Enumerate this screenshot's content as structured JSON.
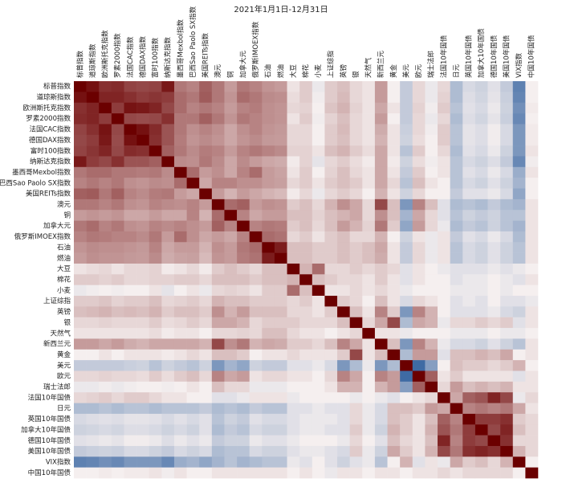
{
  "chart_data": {
    "type": "heatmap",
    "title": "2021年1月1日-12月31日",
    "categories": [
      "标普指数",
      "道琼斯指数",
      "欧洲斯托克指数",
      "罗素2000指数",
      "法国CAC指数",
      "德国DAX指数",
      "富时100指数",
      "纳斯达克指数",
      "墨西哥Mexbol指数",
      "巴西Sao Paolo SX指数",
      "美国REITs指数",
      "澳元",
      "铜",
      "加拿大元",
      "俄罗斯IMOEX指数",
      "石油",
      "燃油",
      "大豆",
      "棉花",
      "小麦",
      "上证综指",
      "英镑",
      "银",
      "天然气",
      "新西兰元",
      "黄金",
      "美元",
      "欧元",
      "瑞士法郎",
      "法国10年国债",
      "日元",
      "英国10年国债",
      "加拿大10年国债",
      "德国10年国债",
      "美国10年国债",
      "VIX指数",
      "中国10年国债"
    ],
    "values": [
      [
        1
      ],
      [
        0.93,
        1
      ],
      [
        0.8,
        0.85,
        1
      ],
      [
        0.82,
        0.85,
        0.75,
        1
      ],
      [
        0.72,
        0.8,
        0.92,
        0.7,
        1
      ],
      [
        0.7,
        0.75,
        0.9,
        0.68,
        0.93,
        1
      ],
      [
        0.72,
        0.78,
        0.85,
        0.7,
        0.82,
        0.8,
        1
      ],
      [
        0.9,
        0.75,
        0.7,
        0.8,
        0.65,
        0.65,
        0.6,
        1
      ],
      [
        0.5,
        0.55,
        0.55,
        0.5,
        0.5,
        0.48,
        0.5,
        0.42,
        1
      ],
      [
        0.45,
        0.5,
        0.45,
        0.5,
        0.4,
        0.38,
        0.42,
        0.4,
        0.55,
        1
      ],
      [
        0.6,
        0.62,
        0.5,
        0.6,
        0.45,
        0.42,
        0.48,
        0.5,
        0.35,
        0.3,
        1
      ],
      [
        0.5,
        0.5,
        0.45,
        0.5,
        0.4,
        0.38,
        0.45,
        0.42,
        0.4,
        0.45,
        0.35,
        1
      ],
      [
        0.35,
        0.38,
        0.35,
        0.38,
        0.3,
        0.3,
        0.35,
        0.3,
        0.3,
        0.45,
        0.25,
        0.55,
        1
      ],
      [
        0.5,
        0.55,
        0.45,
        0.5,
        0.4,
        0.38,
        0.45,
        0.42,
        0.45,
        0.4,
        0.35,
        0.6,
        0.45,
        1
      ],
      [
        0.45,
        0.5,
        0.48,
        0.45,
        0.45,
        0.42,
        0.5,
        0.35,
        0.55,
        0.4,
        0.3,
        0.35,
        0.3,
        0.45,
        1
      ],
      [
        0.38,
        0.42,
        0.4,
        0.4,
        0.38,
        0.36,
        0.45,
        0.3,
        0.35,
        0.35,
        0.25,
        0.4,
        0.35,
        0.5,
        0.55,
        1
      ],
      [
        0.35,
        0.4,
        0.38,
        0.38,
        0.36,
        0.35,
        0.42,
        0.28,
        0.32,
        0.33,
        0.22,
        0.38,
        0.35,
        0.48,
        0.52,
        0.88,
        1
      ],
      [
        0.05,
        0.08,
        0.1,
        0.05,
        0.1,
        0.1,
        0.12,
        0.02,
        0.05,
        0.1,
        0.02,
        0.15,
        0.2,
        0.15,
        0.1,
        0.2,
        0.2,
        1
      ],
      [
        0.15,
        0.15,
        0.12,
        0.15,
        0.1,
        0.1,
        0.12,
        0.12,
        0.15,
        0.15,
        0.1,
        0.2,
        0.2,
        0.2,
        0.15,
        0.2,
        0.2,
        0.25,
        1
      ],
      [
        -0.05,
        -0.02,
        0.0,
        -0.02,
        0.0,
        0.0,
        0.05,
        -0.08,
        0.0,
        0.05,
        -0.05,
        0.1,
        0.12,
        0.1,
        0.05,
        0.15,
        0.15,
        0.55,
        0.2,
        1
      ],
      [
        0.15,
        0.15,
        0.18,
        0.12,
        0.15,
        0.15,
        0.2,
        0.1,
        0.12,
        0.15,
        0.1,
        0.25,
        0.2,
        0.2,
        0.15,
        0.15,
        0.15,
        0.1,
        0.15,
        0.05,
        1
      ],
      [
        0.2,
        0.22,
        0.25,
        0.2,
        0.22,
        0.2,
        0.25,
        0.15,
        0.2,
        0.2,
        0.15,
        0.4,
        0.25,
        0.35,
        0.2,
        0.2,
        0.2,
        0.1,
        0.1,
        0.05,
        0.15,
        1
      ],
      [
        0.1,
        0.1,
        0.12,
        0.1,
        0.1,
        0.1,
        0.15,
        0.08,
        0.1,
        0.15,
        0.1,
        0.3,
        0.3,
        0.25,
        0.1,
        0.15,
        0.15,
        0.15,
        0.1,
        0.1,
        0.1,
        0.2,
        1
      ],
      [
        0.05,
        0.05,
        0.05,
        0.05,
        0.05,
        0.05,
        0.08,
        0.02,
        0.05,
        0.05,
        0.0,
        0.1,
        0.1,
        0.12,
        0.1,
        0.2,
        0.2,
        0.1,
        0.05,
        0.05,
        0.0,
        0.05,
        0.1,
        1
      ],
      [
        0.35,
        0.35,
        0.3,
        0.35,
        0.28,
        0.25,
        0.3,
        0.3,
        0.3,
        0.3,
        0.25,
        0.7,
        0.4,
        0.5,
        0.25,
        0.3,
        0.28,
        0.15,
        0.15,
        0.1,
        0.2,
        0.45,
        0.3,
        0.05,
        1
      ],
      [
        0.0,
        0.0,
        0.05,
        0.0,
        0.05,
        0.05,
        0.05,
        0.02,
        0.05,
        0.1,
        0.05,
        0.2,
        0.2,
        0.15,
        0.0,
        0.05,
        0.05,
        0.1,
        0.05,
        0.05,
        0.05,
        0.15,
        0.7,
        0.05,
        0.2,
        1
      ],
      [
        -0.25,
        -0.25,
        -0.25,
        -0.25,
        -0.22,
        -0.2,
        -0.3,
        -0.2,
        -0.25,
        -0.3,
        -0.2,
        -0.6,
        -0.4,
        -0.5,
        -0.2,
        -0.25,
        -0.25,
        -0.1,
        -0.1,
        -0.05,
        -0.15,
        -0.6,
        -0.35,
        -0.05,
        -0.6,
        -0.35,
        1
      ],
      [
        0.1,
        0.1,
        0.12,
        0.1,
        0.1,
        0.08,
        0.15,
        0.08,
        0.15,
        0.2,
        0.1,
        0.45,
        0.3,
        0.35,
        0.05,
        0.1,
        0.1,
        0.05,
        0.05,
        0.0,
        0.1,
        0.45,
        0.3,
        0.0,
        0.45,
        0.35,
        -0.9,
        1
      ],
      [
        -0.05,
        -0.05,
        -0.02,
        -0.05,
        -0.02,
        0.0,
        0.0,
        -0.02,
        0.0,
        0.05,
        0.0,
        0.2,
        0.1,
        0.1,
        -0.05,
        -0.05,
        -0.05,
        0.0,
        0.0,
        0.0,
        0.05,
        0.25,
        0.25,
        0.0,
        0.25,
        0.35,
        -0.55,
        0.6,
        1
      ],
      [
        0.1,
        0.12,
        0.15,
        0.1,
        0.15,
        0.15,
        0.1,
        0.05,
        0.05,
        0.0,
        0.0,
        -0.1,
        -0.1,
        -0.05,
        0.05,
        0.05,
        0.05,
        -0.05,
        0.0,
        0.0,
        0.0,
        0.0,
        -0.05,
        0.0,
        -0.05,
        -0.1,
        0.0,
        0.05,
        0.1,
        1
      ],
      [
        -0.35,
        -0.35,
        -0.3,
        -0.35,
        -0.3,
        -0.3,
        -0.35,
        -0.3,
        -0.3,
        -0.3,
        -0.25,
        -0.35,
        -0.3,
        -0.35,
        -0.25,
        -0.3,
        -0.3,
        -0.1,
        -0.1,
        -0.05,
        -0.1,
        -0.1,
        0.1,
        -0.05,
        -0.15,
        0.2,
        0.2,
        0.15,
        0.35,
        0.3,
        1
      ],
      [
        -0.15,
        -0.12,
        -0.1,
        -0.12,
        -0.08,
        -0.08,
        -0.1,
        -0.15,
        -0.1,
        -0.15,
        -0.1,
        -0.3,
        -0.2,
        -0.25,
        -0.1,
        -0.15,
        -0.15,
        -0.1,
        -0.05,
        -0.05,
        -0.05,
        -0.1,
        0.1,
        -0.05,
        -0.15,
        0.2,
        0.15,
        0.05,
        0.2,
        0.6,
        0.45,
        1
      ],
      [
        -0.2,
        -0.18,
        -0.15,
        -0.18,
        -0.12,
        -0.12,
        -0.15,
        -0.2,
        -0.15,
        -0.2,
        -0.1,
        -0.35,
        -0.25,
        -0.3,
        -0.15,
        -0.2,
        -0.2,
        -0.1,
        -0.05,
        -0.05,
        -0.1,
        -0.1,
        0.15,
        -0.05,
        -0.2,
        0.25,
        0.15,
        0.05,
        0.25,
        0.65,
        0.5,
        0.75,
        1
      ],
      [
        -0.1,
        -0.08,
        -0.05,
        -0.08,
        -0.02,
        -0.02,
        -0.05,
        -0.12,
        -0.05,
        -0.1,
        -0.05,
        -0.25,
        -0.2,
        -0.2,
        -0.05,
        -0.1,
        -0.1,
        -0.05,
        0.0,
        0.0,
        0.0,
        -0.05,
        0.1,
        0.0,
        -0.1,
        0.2,
        0.1,
        0.05,
        0.2,
        0.85,
        0.45,
        0.75,
        0.7,
        1
      ],
      [
        -0.25,
        -0.22,
        -0.2,
        -0.22,
        -0.15,
        -0.15,
        -0.2,
        -0.25,
        -0.15,
        -0.2,
        -0.15,
        -0.35,
        -0.3,
        -0.3,
        -0.15,
        -0.2,
        -0.2,
        -0.1,
        -0.05,
        -0.05,
        -0.1,
        -0.15,
        0.15,
        -0.05,
        -0.2,
        0.3,
        0.15,
        0.05,
        0.25,
        0.7,
        0.5,
        0.8,
        0.85,
        0.8,
        1
      ],
      [
        -0.75,
        -0.72,
        -0.65,
        -0.7,
        -0.6,
        -0.6,
        -0.6,
        -0.7,
        -0.45,
        -0.4,
        -0.5,
        -0.4,
        -0.3,
        -0.4,
        -0.35,
        -0.3,
        -0.3,
        -0.05,
        -0.1,
        0.0,
        -0.1,
        -0.2,
        -0.1,
        -0.05,
        -0.3,
        0.0,
        0.25,
        -0.1,
        0.05,
        -0.05,
        0.3,
        0.15,
        0.2,
        0.1,
        0.25,
        1
      ],
      [
        0.0,
        0.0,
        0.02,
        0.0,
        0.02,
        0.02,
        0.05,
        -0.02,
        0.05,
        0.0,
        0.0,
        0.05,
        0.05,
        0.05,
        0.05,
        0.05,
        0.05,
        0.0,
        0.05,
        0.0,
        -0.05,
        0.05,
        0.05,
        0.0,
        0.05,
        0.05,
        0.0,
        0.05,
        0.05,
        0.1,
        0.05,
        0.1,
        0.1,
        0.1,
        0.1,
        0.0,
        1
      ]
    ],
    "vlim": [
      -1,
      1
    ],
    "colorscale": [
      "#2b5c9c",
      "#f5efef",
      "#6b0000"
    ]
  }
}
